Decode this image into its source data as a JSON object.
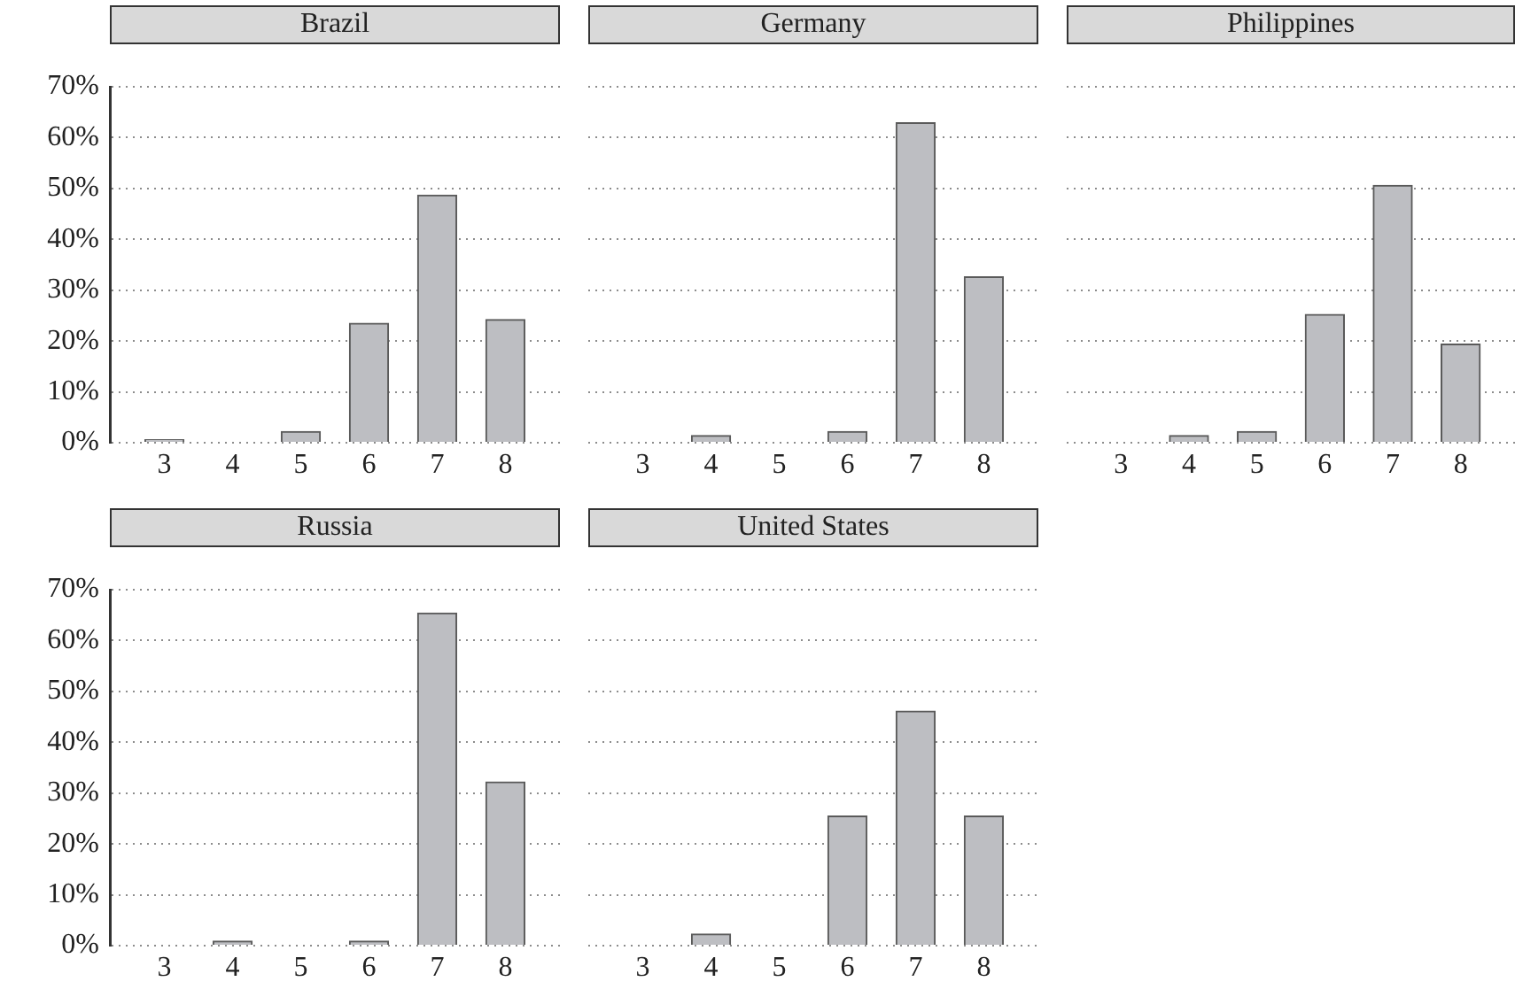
{
  "chart_data": [
    {
      "type": "bar",
      "title": "Brazil",
      "categories": [
        "3",
        "4",
        "5",
        "6",
        "7",
        "8"
      ],
      "values": [
        0.6,
        0,
        2.2,
        23.5,
        48.7,
        24.2
      ],
      "color": "#bdbec2",
      "ylim": [
        0,
        70
      ],
      "yticks": [
        {
          "value": 0,
          "label": "0%"
        },
        {
          "value": 10,
          "label": "10%"
        },
        {
          "value": 20,
          "label": "20%"
        },
        {
          "value": 30,
          "label": "30%"
        },
        {
          "value": 40,
          "label": "40%"
        },
        {
          "value": 50,
          "label": "50%"
        },
        {
          "value": 60,
          "label": "60%"
        },
        {
          "value": 70,
          "label": "70%"
        }
      ],
      "grid": "y"
    },
    {
      "type": "bar",
      "title": "Germany",
      "categories": [
        "3",
        "4",
        "5",
        "6",
        "7",
        "8"
      ],
      "values": [
        0,
        1.4,
        0,
        2.2,
        62.9,
        32.6
      ],
      "color": "#bdbec2",
      "ylim": [
        0,
        70
      ],
      "yticks": [
        0,
        10,
        20,
        30,
        40,
        50,
        60,
        70
      ],
      "grid": "y",
      "tick_labels": "x"
    },
    {
      "type": "bar",
      "title": "Philippines",
      "categories": [
        "3",
        "4",
        "5",
        "6",
        "7",
        "8"
      ],
      "values": [
        0,
        1.4,
        2.2,
        25.2,
        50.6,
        19.4
      ],
      "color": "#bdbec2",
      "ylim": [
        0,
        70
      ],
      "yticks": [
        0,
        10,
        20,
        30,
        40,
        50,
        60,
        70
      ],
      "grid": "y",
      "tick_labels": "x"
    },
    {
      "type": "bar",
      "title": "Russia",
      "categories": [
        "3",
        "4",
        "5",
        "6",
        "7",
        "8"
      ],
      "values": [
        0,
        0.9,
        0,
        0.9,
        65.4,
        32.2
      ],
      "color": "#bdbec2",
      "ylim": [
        0,
        70
      ],
      "yticks": [
        {
          "value": 0,
          "label": "0%"
        },
        {
          "value": 10,
          "label": "10%"
        },
        {
          "value": 20,
          "label": "20%"
        },
        {
          "value": 30,
          "label": "30%"
        },
        {
          "value": 40,
          "label": "40%"
        },
        {
          "value": 50,
          "label": "50%"
        },
        {
          "value": 60,
          "label": "60%"
        },
        {
          "value": 70,
          "label": "70%"
        }
      ],
      "grid": "y"
    },
    {
      "type": "bar",
      "title": "United States",
      "categories": [
        "3",
        "4",
        "5",
        "6",
        "7",
        "8"
      ],
      "values": [
        0,
        2.3,
        0,
        25.5,
        46.1,
        25.5
      ],
      "color": "#bdbec2",
      "ylim": [
        0,
        70
      ],
      "yticks": [
        0,
        10,
        20,
        30,
        40,
        50,
        60,
        70
      ],
      "grid": "y",
      "tick_labels": "x"
    }
  ]
}
